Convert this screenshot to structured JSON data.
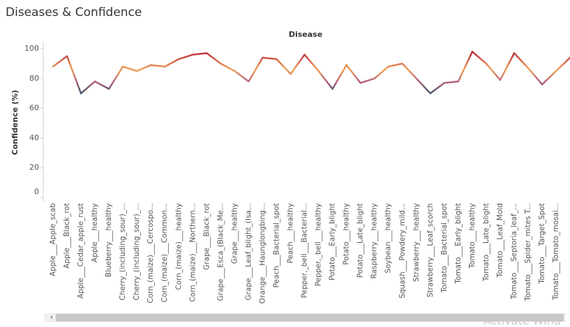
{
  "chart_data": {
    "type": "line",
    "title": "Diseases  & Confidence",
    "column_header": "Disease",
    "y_label": "Confidence (%)",
    "categories": [
      "Apple___Apple_scab",
      "Apple___Black_rot",
      "Apple___Cedar_apple_rust",
      "Apple___healthy",
      "Blueberry___healthy",
      "Cherry_(including_sour)_...",
      "Cherry_(including_sour)_...",
      "Corn_(maize)___Cercospo...",
      "Corn_(maize)___Common...",
      "Corn_(maize)___healthy",
      "Corn_(maize)___Northern...",
      "Grape___Black_rot",
      "Grape___Esca_(Black_Me...",
      "Grape___healthy",
      "Grape___Leaf_blight_(Isa...",
      "Orange___Haunglongbing...",
      "Peach___Bacterial_spot",
      "Peach___healthy",
      "Pepper,_bell___Bacterial...",
      "Pepper,_bell___healthy",
      "Potato___Early_blight",
      "Potato___healthy",
      "Potato___Late_blight",
      "Raspberry___healthy",
      "Soybean___healthy",
      "Squash___Powdery_mild...",
      "Strawberry___healthy",
      "Strawberry___Leaf_scorch",
      "Tomato___Bacterial_spot",
      "Tomato___Early_blight",
      "Tomato___healthy",
      "Tomato___Late_blight",
      "Tomato___Leaf_Mold",
      "Tomato___Septoria_leaf_...",
      "Tomato___Spider_mites T...",
      "Tomato___Target_Spot",
      "Tomato___Tomato_mosai...",
      null
    ],
    "values": [
      88,
      95,
      70,
      78,
      73,
      88,
      85,
      89,
      88,
      93,
      96,
      97,
      90,
      85,
      78,
      94,
      93,
      83,
      96,
      85,
      73,
      89,
      77,
      80,
      88,
      90,
      80,
      70,
      77,
      78,
      98,
      90,
      79,
      97,
      87,
      76,
      85,
      94
    ],
    "color_stops": [
      {
        "value": 70,
        "color": "#44546c"
      },
      {
        "value": 78,
        "color": "#b4607c"
      },
      {
        "value": 86,
        "color": "#f0a256"
      },
      {
        "value": 98,
        "color": "#b8263e"
      }
    ],
    "ylim": [
      0,
      100
    ],
    "yticks": [
      0,
      20,
      40,
      60,
      80,
      100
    ],
    "grid": false,
    "watermark": "Activate Wind"
  }
}
